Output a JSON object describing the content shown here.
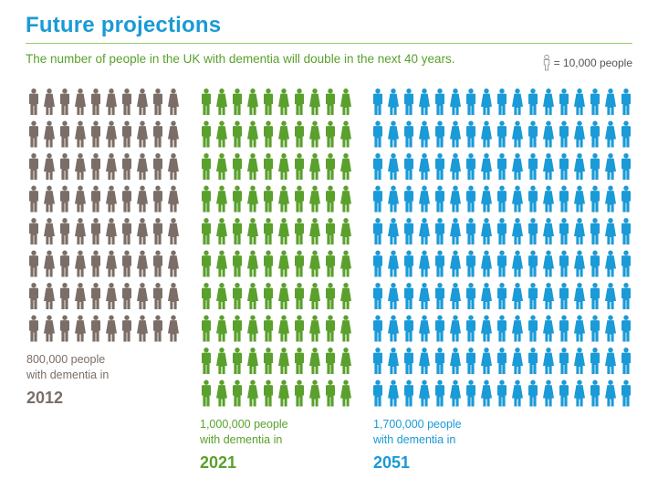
{
  "header": {
    "title": "Future projections",
    "subtitle": "The number of people in the UK with dementia will double in the next 40 years.",
    "legend_text": "= 10,000 people"
  },
  "chart_data": {
    "type": "pictogram",
    "unit": 10000,
    "unit_label": "= 10,000 people",
    "categories": [
      "2012",
      "2021",
      "2051"
    ],
    "values": [
      800000,
      1000000,
      1700000
    ],
    "icon_counts": [
      80,
      100,
      170
    ],
    "colors": [
      "#7a6e66",
      "#5aa02c",
      "#1a9ad6"
    ],
    "labels": [
      {
        "count": "800,000 people",
        "line2": "with dementia in",
        "year": "2012"
      },
      {
        "count": "1,000,000 people",
        "line2": "with dementia in",
        "year": "2021"
      },
      {
        "count": "1,700,000 people",
        "line2": "with dementia in",
        "year": "2051"
      }
    ]
  }
}
